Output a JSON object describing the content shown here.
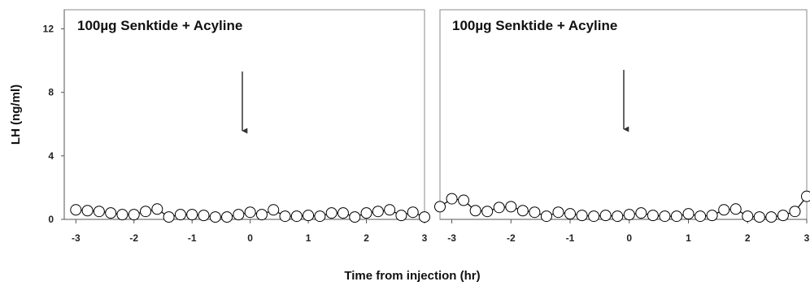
{
  "chart_data": [
    {
      "type": "line",
      "title": "100µg Senktide + Acyline",
      "xlabel": "Time from injection  (hr)",
      "ylabel": "LH (ng/ml)",
      "xlim": [
        -3.2,
        3.0
      ],
      "ylim": [
        0,
        13.2
      ],
      "x_ticks": [
        -3,
        -2,
        -1,
        0,
        1,
        2,
        3
      ],
      "y_ticks": [
        0,
        4,
        8,
        12
      ],
      "marker": "open-circle",
      "arrow_at_x": 0,
      "series": [
        {
          "x": [
            -3.0,
            -2.8,
            -2.6,
            -2.4,
            -2.2,
            -2.0,
            -1.8,
            -1.6,
            -1.4,
            -1.2,
            -1.0,
            -0.8,
            -0.6,
            -0.4,
            -0.2,
            0.0,
            0.2,
            0.4,
            0.6,
            0.8,
            1.0,
            1.2,
            1.4,
            1.6,
            1.8,
            2.0,
            2.2,
            2.4,
            2.6,
            2.8,
            3.0
          ],
          "y": [
            0.6,
            0.55,
            0.5,
            0.4,
            0.3,
            0.3,
            0.5,
            0.65,
            0.15,
            0.3,
            0.3,
            0.25,
            0.15,
            0.15,
            0.3,
            0.45,
            0.3,
            0.6,
            0.2,
            0.2,
            0.25,
            0.2,
            0.4,
            0.4,
            0.15,
            0.4,
            0.5,
            0.6,
            0.25,
            0.45,
            0.15
          ]
        }
      ]
    },
    {
      "type": "line",
      "title": "100µg Senktide + Acyline",
      "xlabel": "Time from injection  (hr)",
      "ylabel": "",
      "xlim": [
        -3.2,
        3.0
      ],
      "ylim": [
        0,
        13.2
      ],
      "x_ticks": [
        -3,
        -2,
        -1,
        0,
        1,
        2,
        3
      ],
      "y_ticks": [],
      "marker": "open-circle",
      "arrow_at_x": 0,
      "series": [
        {
          "x": [
            -3.2,
            -3.0,
            -2.8,
            -2.6,
            -2.4,
            -2.2,
            -2.0,
            -1.8,
            -1.6,
            -1.4,
            -1.2,
            -1.0,
            -0.8,
            -0.6,
            -0.4,
            -0.2,
            0.0,
            0.2,
            0.4,
            0.6,
            0.8,
            1.0,
            1.2,
            1.4,
            1.6,
            1.8,
            2.0,
            2.2,
            2.4,
            2.6,
            2.8,
            3.0
          ],
          "y": [
            0.8,
            1.3,
            1.2,
            0.55,
            0.5,
            0.75,
            0.8,
            0.55,
            0.45,
            0.2,
            0.45,
            0.35,
            0.25,
            0.2,
            0.25,
            0.2,
            0.3,
            0.4,
            0.25,
            0.2,
            0.2,
            0.35,
            0.2,
            0.25,
            0.6,
            0.65,
            0.2,
            0.15,
            0.15,
            0.25,
            0.5,
            1.45
          ]
        }
      ]
    }
  ]
}
